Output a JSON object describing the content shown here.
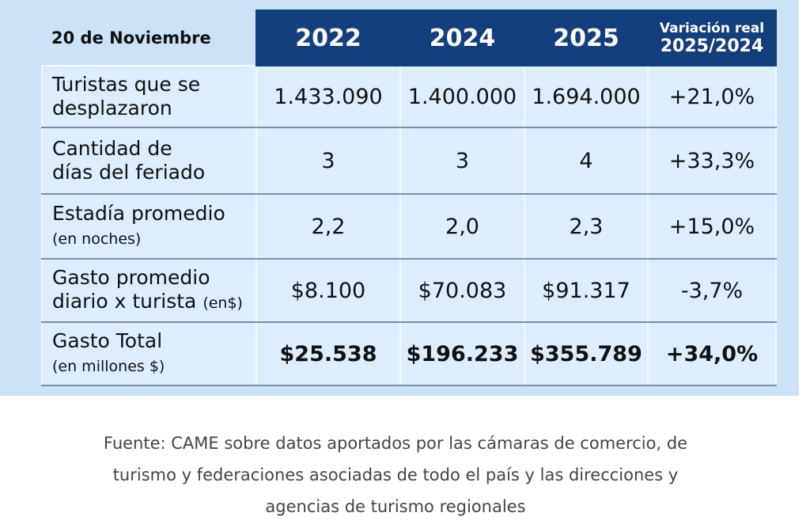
{
  "table": {
    "header": {
      "corner": "20 de Noviembre",
      "years": [
        "2022",
        "2024",
        "2025"
      ],
      "variation": [
        "Variación real",
        "2025/2024"
      ]
    },
    "rows": [
      {
        "label": [
          "Turistas que se",
          "desplazaron"
        ],
        "note": null,
        "cells": [
          "1.433.090",
          "1.400.000",
          "1.694.000",
          "+21,0%"
        ]
      },
      {
        "label": [
          "Cantidad de",
          "días del feriado"
        ],
        "note": null,
        "cells": [
          "3",
          "3",
          "4",
          "+33,3%"
        ]
      },
      {
        "label": [
          "Estadía promedio"
        ],
        "note": "(en noches)",
        "cells": [
          "2,2",
          "2,0",
          "2,3",
          "+15,0%"
        ]
      },
      {
        "label": [
          "Gasto promedio",
          "diario x turista"
        ],
        "note": "(en$)",
        "cells": [
          "$8.100",
          "$70.083",
          "$91.317",
          "-3,7%"
        ]
      },
      {
        "label": [
          "Gasto Total"
        ],
        "note": "(en millones $)",
        "cells": [
          "$25.538",
          "$196.233",
          "$355.789",
          "+34,0%"
        ]
      }
    ]
  },
  "caption": [
    "Fuente: CAME sobre datos aportados por las cámaras de comercio, de",
    "turismo y federaciones asociadas de todo el país y las direcciones y",
    "agencias de turismo regionales"
  ]
}
